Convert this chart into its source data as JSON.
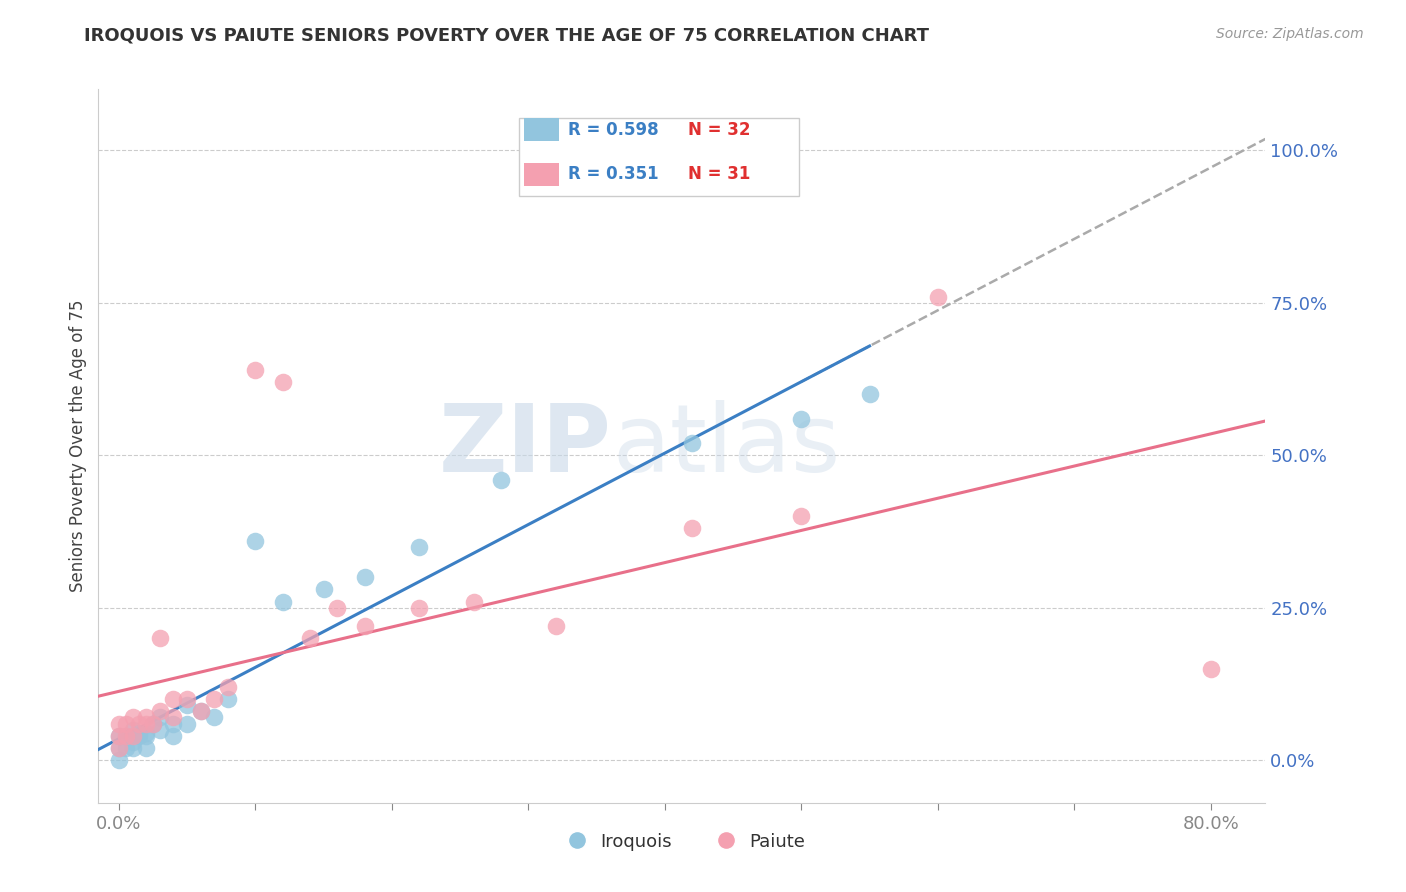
{
  "title": "IROQUOIS VS PAIUTE SENIORS POVERTY OVER THE AGE OF 75 CORRELATION CHART",
  "source": "Source: ZipAtlas.com",
  "ylabel": "Seniors Poverty Over the Age of 75",
  "ytick_labels": [
    "0.0%",
    "25.0%",
    "50.0%",
    "75.0%",
    "100.0%"
  ],
  "ytick_values": [
    0.0,
    0.25,
    0.5,
    0.75,
    1.0
  ],
  "xlim": [
    -0.015,
    0.84
  ],
  "ylim": [
    -0.07,
    1.1
  ],
  "iroquois_color": "#92C5DE",
  "paiute_color": "#F4A0B0",
  "iroquois_line_color": "#3B7FC4",
  "paiute_line_color": "#E8708A",
  "R_iroquois": 0.598,
  "N_iroquois": 32,
  "R_paiute": 0.351,
  "N_paiute": 31,
  "legend_label_iroquois": "Iroquois",
  "legend_label_paiute": "Paiute",
  "iroquois_x": [
    0.0,
    0.0,
    0.0,
    0.005,
    0.005,
    0.01,
    0.01,
    0.01,
    0.015,
    0.015,
    0.02,
    0.02,
    0.02,
    0.025,
    0.03,
    0.03,
    0.04,
    0.04,
    0.05,
    0.05,
    0.06,
    0.07,
    0.08,
    0.1,
    0.12,
    0.15,
    0.18,
    0.22,
    0.28,
    0.42,
    0.5,
    0.55
  ],
  "iroquois_y": [
    0.0,
    0.02,
    0.04,
    0.02,
    0.04,
    0.02,
    0.03,
    0.05,
    0.04,
    0.045,
    0.02,
    0.04,
    0.045,
    0.06,
    0.05,
    0.07,
    0.04,
    0.06,
    0.06,
    0.09,
    0.08,
    0.07,
    0.1,
    0.36,
    0.26,
    0.28,
    0.3,
    0.35,
    0.46,
    0.52,
    0.56,
    0.6
  ],
  "paiute_x": [
    0.0,
    0.0,
    0.0,
    0.005,
    0.005,
    0.01,
    0.01,
    0.015,
    0.02,
    0.02,
    0.025,
    0.03,
    0.03,
    0.04,
    0.04,
    0.05,
    0.06,
    0.07,
    0.08,
    0.1,
    0.12,
    0.14,
    0.16,
    0.18,
    0.22,
    0.26,
    0.32,
    0.42,
    0.5,
    0.6,
    0.8
  ],
  "paiute_y": [
    0.02,
    0.04,
    0.06,
    0.04,
    0.06,
    0.04,
    0.07,
    0.06,
    0.06,
    0.07,
    0.06,
    0.08,
    0.2,
    0.07,
    0.1,
    0.1,
    0.08,
    0.1,
    0.12,
    0.64,
    0.62,
    0.2,
    0.25,
    0.22,
    0.25,
    0.26,
    0.22,
    0.38,
    0.4,
    0.76,
    0.15
  ],
  "watermark_zip": "ZIP",
  "watermark_atlas": "atlas",
  "background_color": "#FFFFFF",
  "grid_color": "#CCCCCC",
  "xtick_positions": [
    0.0,
    0.1,
    0.2,
    0.3,
    0.4,
    0.5,
    0.6,
    0.7,
    0.8
  ],
  "xtick_labels_show": {
    "0.0": "0.0%",
    "0.80": "80.0%"
  }
}
